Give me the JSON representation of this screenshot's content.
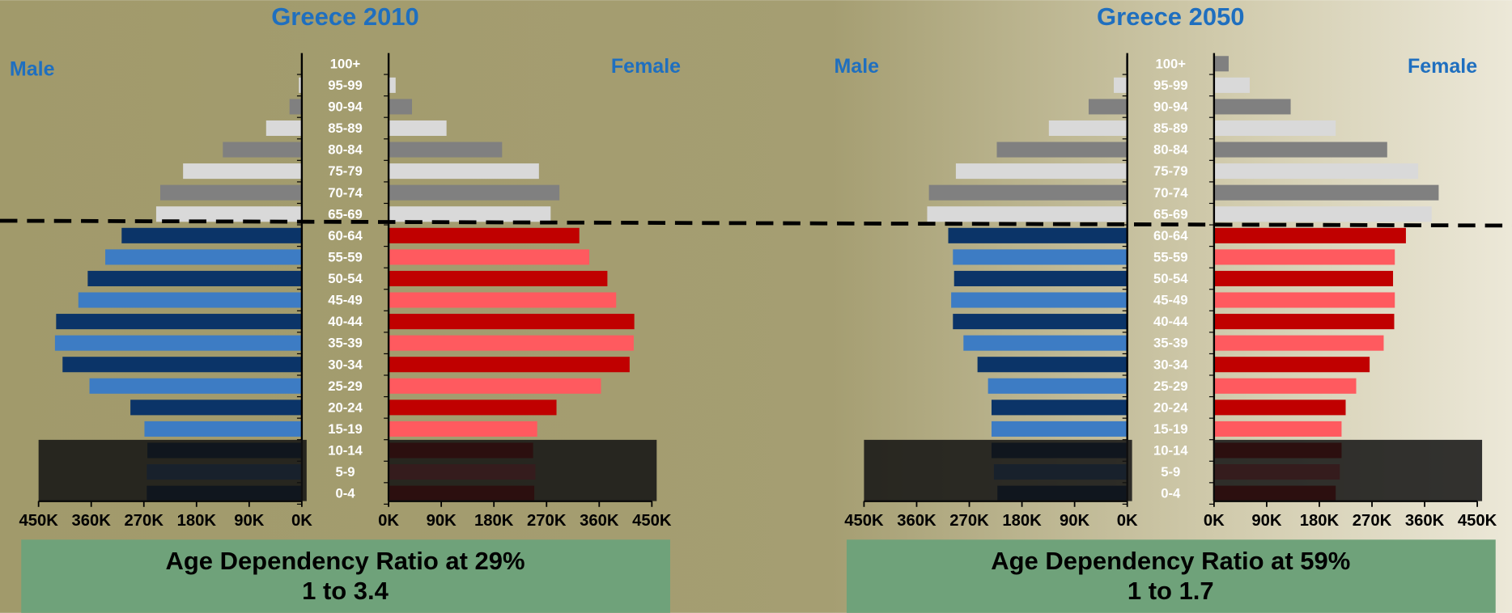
{
  "chart_data": [
    {
      "type": "pyramid",
      "title": "Greece 2010",
      "categories": [
        "100+",
        "95-99",
        "90-94",
        "85-89",
        "80-84",
        "75-79",
        "70-74",
        "65-69",
        "60-64",
        "55-59",
        "50-54",
        "45-49",
        "40-44",
        "35-39",
        "30-34",
        "25-29",
        "20-24",
        "15-19",
        "10-14",
        "5-9",
        "0-4"
      ],
      "series": [
        {
          "name": "Male",
          "colors": [
            "#808080",
            "#d9d9d9",
            "#808080",
            "#d9d9d9",
            "#808080",
            "#d9d9d9",
            "#808080",
            "#d9d9d9",
            "#0b3468",
            "#3d7cc4",
            "#0b3468",
            "#3d7cc4",
            "#0b3468",
            "#3d7cc4",
            "#0b3468",
            "#3d7cc4",
            "#0b3468",
            "#3d7cc4",
            "#0b3468",
            "#3d7cc4",
            "#0b3468"
          ],
          "values": [
            1,
            5,
            21,
            61,
            135,
            203,
            242,
            249,
            308,
            336,
            366,
            382,
            420,
            422,
            409,
            363,
            293,
            269,
            264,
            265,
            265
          ],
          "xlim": [
            450,
            0
          ],
          "xticks": [
            {
              "value": 450,
              "label": "450K"
            },
            {
              "value": 360,
              "label": "360K"
            },
            {
              "value": 270,
              "label": "270K"
            },
            {
              "value": 180,
              "label": "180K"
            },
            {
              "value": 90,
              "label": "90K"
            },
            {
              "value": 0,
              "label": "0K"
            }
          ]
        },
        {
          "name": "Female",
          "colors": [
            "#808080",
            "#d9d9d9",
            "#808080",
            "#d9d9d9",
            "#808080",
            "#d9d9d9",
            "#808080",
            "#d9d9d9",
            "#c00000",
            "#ff5a5f",
            "#c00000",
            "#ff5a5f",
            "#c00000",
            "#ff5a5f",
            "#c00000",
            "#ff5a5f",
            "#c00000",
            "#ff5a5f",
            "#c00000",
            "#ff5a5f",
            "#c00000"
          ],
          "values": [
            1,
            12,
            40,
            99,
            194,
            257,
            292,
            277,
            326,
            343,
            374,
            389,
            420,
            419,
            412,
            363,
            287,
            254,
            247,
            251,
            249
          ],
          "xlim": [
            0,
            450
          ],
          "xticks": [
            {
              "value": 0,
              "label": "0K"
            },
            {
              "value": 90,
              "label": "90K"
            },
            {
              "value": 180,
              "label": "180K"
            },
            {
              "value": 270,
              "label": "270K"
            },
            {
              "value": 360,
              "label": "360K"
            },
            {
              "value": 450,
              "label": "450K"
            }
          ]
        }
      ],
      "annotations": [
        "Age Dependency Ratio at 29%",
        "1 to 3.4"
      ]
    },
    {
      "type": "pyramid",
      "title": "Greece 2050",
      "categories": [
        "100+",
        "95-99",
        "90-94",
        "85-89",
        "80-84",
        "75-79",
        "70-74",
        "65-69",
        "60-64",
        "55-59",
        "50-54",
        "45-49",
        "40-44",
        "35-39",
        "30-34",
        "25-29",
        "20-24",
        "15-19",
        "10-14",
        "5-9",
        "0-4"
      ],
      "series": [
        {
          "name": "Male",
          "colors": [
            "#808080",
            "#d9d9d9",
            "#808080",
            "#d9d9d9",
            "#808080",
            "#d9d9d9",
            "#808080",
            "#d9d9d9",
            "#0b3468",
            "#3d7cc4",
            "#0b3468",
            "#3d7cc4",
            "#0b3468",
            "#3d7cc4",
            "#0b3468",
            "#3d7cc4",
            "#0b3468",
            "#3d7cc4",
            "#0b3468",
            "#3d7cc4",
            "#0b3468"
          ],
          "values": [
            2,
            23,
            66,
            134,
            223,
            293,
            339,
            342,
            306,
            298,
            296,
            301,
            298,
            280,
            256,
            238,
            232,
            232,
            232,
            228,
            222
          ],
          "xlim": [
            450,
            0
          ],
          "xticks": [
            {
              "value": 450,
              "label": "450K"
            },
            {
              "value": 360,
              "label": "360K"
            },
            {
              "value": 270,
              "label": "270K"
            },
            {
              "value": 180,
              "label": "180K"
            },
            {
              "value": 90,
              "label": "90K"
            },
            {
              "value": 0,
              "label": "0K"
            }
          ]
        },
        {
          "name": "Female",
          "colors": [
            "#808080",
            "#d9d9d9",
            "#808080",
            "#d9d9d9",
            "#808080",
            "#d9d9d9",
            "#808080",
            "#d9d9d9",
            "#c00000",
            "#ff5a5f",
            "#c00000",
            "#ff5a5f",
            "#c00000",
            "#ff5a5f",
            "#c00000",
            "#ff5a5f",
            "#c00000",
            "#ff5a5f",
            "#c00000",
            "#ff5a5f",
            "#c00000"
          ],
          "values": [
            25,
            61,
            131,
            208,
            296,
            349,
            384,
            372,
            328,
            309,
            306,
            309,
            308,
            290,
            266,
            243,
            225,
            218,
            218,
            215,
            208
          ],
          "xlim": [
            0,
            450
          ],
          "xticks": [
            {
              "value": 0,
              "label": "0K"
            },
            {
              "value": 90,
              "label": "90K"
            },
            {
              "value": 180,
              "label": "180K"
            },
            {
              "value": 270,
              "label": "270K"
            },
            {
              "value": 360,
              "label": "360K"
            },
            {
              "value": 450,
              "label": "450K"
            }
          ]
        }
      ],
      "annotations": [
        "Age Dependency Ratio at 59%",
        "1 to 1.7"
      ]
    }
  ]
}
